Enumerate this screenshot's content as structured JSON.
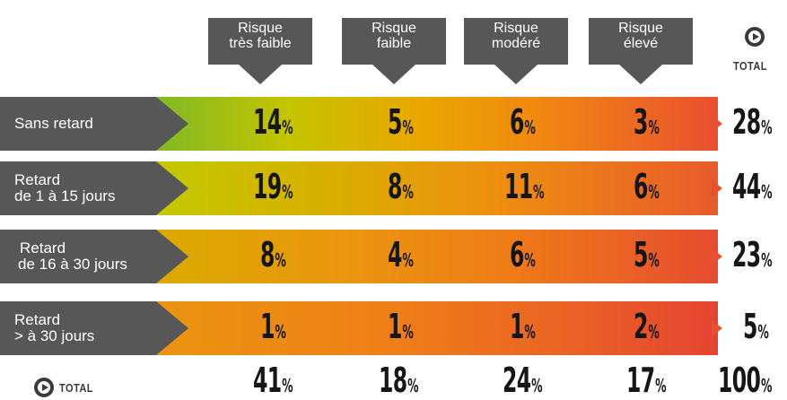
{
  "columns": [
    {
      "line1": "Risque",
      "line2": "très faible"
    },
    {
      "line1": "Risque",
      "line2": "faible"
    },
    {
      "line1": "Risque",
      "line2": "modéré"
    },
    {
      "line1": "Risque",
      "line2": "élevé"
    }
  ],
  "total_label": "TOTAL",
  "percent_symbol": "%",
  "rows": [
    {
      "line1": "Sans retard",
      "line2": "",
      "values": [
        "14",
        "5",
        "6",
        "3"
      ],
      "total": "28"
    },
    {
      "line1": "Retard",
      "line2": "de 1 à 15 jours",
      "values": [
        "19",
        "8",
        "11",
        "6"
      ],
      "total": "44"
    },
    {
      "line1": "Retard",
      "line2": "de 16 à 30 jours",
      "values": [
        "8",
        "4",
        "6",
        "5"
      ],
      "total": "23"
    },
    {
      "line1": "Retard",
      "line2": "> à 30 jours",
      "values": [
        "1",
        "1",
        "1",
        "2"
      ],
      "total": "5"
    }
  ],
  "totals": {
    "values": [
      "41",
      "18",
      "24",
      "17"
    ],
    "grand": "100"
  },
  "colors": {
    "label_bg": "#575757",
    "arrow": "#ea5030",
    "text": "#161616"
  }
}
